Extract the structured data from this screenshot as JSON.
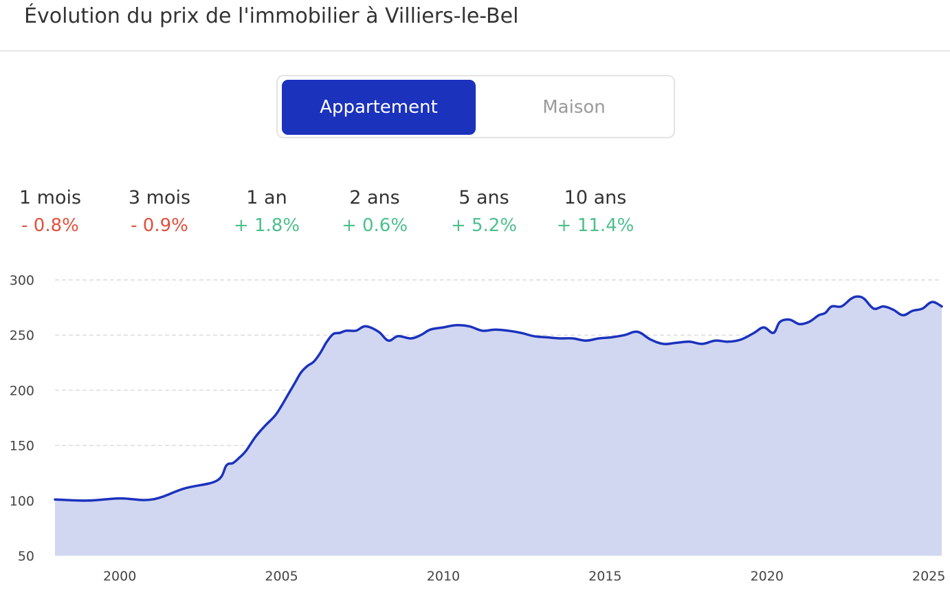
{
  "header": {
    "title": "Évolution du prix de l'immobilier à Villiers-le-Bel"
  },
  "toggle": {
    "options": [
      "Appartement",
      "Maison"
    ],
    "selected": "Appartement"
  },
  "stats": [
    {
      "period": "1 mois",
      "change": "- 0.8%",
      "trend": "down"
    },
    {
      "period": "3 mois",
      "change": "- 0.9%",
      "trend": "down"
    },
    {
      "period": "1 an",
      "change": "+ 1.8%",
      "trend": "up"
    },
    {
      "period": "2 ans",
      "change": "+ 0.6%",
      "trend": "up"
    },
    {
      "period": "5 ans",
      "change": "+ 5.2%",
      "trend": "up"
    },
    {
      "period": "10 ans",
      "change": "+ 11.4%",
      "trend": "up"
    }
  ],
  "colors": {
    "accent": "#1b32bd",
    "area_fill": "#d1d7f1",
    "negative": "#e0503c",
    "positive": "#4cbf8d",
    "gridline": "#dcdcdc"
  },
  "chart_data": {
    "type": "area",
    "title": "",
    "xlabel": "",
    "ylabel": "",
    "xlim": [
      1998.0,
      2025.4
    ],
    "ylim": [
      50,
      300
    ],
    "y_ticks": [
      300,
      250,
      200,
      150,
      100,
      50
    ],
    "x_ticks": [
      2000,
      2005,
      2010,
      2015,
      2020,
      2025
    ],
    "grid": true,
    "x": [
      1998.0,
      1999.0,
      2000.0,
      2001.0,
      2002.0,
      2003.0,
      2003.3,
      2003.5,
      2003.7,
      2003.9,
      2004.2,
      2004.5,
      2004.8,
      2005.0,
      2005.2,
      2005.4,
      2005.6,
      2005.8,
      2006.0,
      2006.2,
      2006.4,
      2006.6,
      2006.8,
      2007.0,
      2007.3,
      2007.6,
      2008.0,
      2008.3,
      2008.6,
      2009.0,
      2009.3,
      2009.6,
      2010.0,
      2010.4,
      2010.8,
      2011.2,
      2011.6,
      2012.0,
      2012.4,
      2012.8,
      2013.2,
      2013.6,
      2014.0,
      2014.4,
      2014.8,
      2015.2,
      2015.6,
      2016.0,
      2016.4,
      2016.8,
      2017.2,
      2017.6,
      2018.0,
      2018.4,
      2018.8,
      2019.2,
      2019.6,
      2019.9,
      2020.2,
      2020.4,
      2020.7,
      2021.0,
      2021.3,
      2021.6,
      2021.8,
      2022.0,
      2022.3,
      2022.6,
      2022.8,
      2023.0,
      2023.3,
      2023.6,
      2023.9,
      2024.2,
      2024.5,
      2024.8,
      2025.1,
      2025.4
    ],
    "series": [
      {
        "values": [
          101,
          100,
          102,
          101,
          111,
          118,
          132,
          134,
          139,
          145,
          158,
          168,
          177,
          186,
          196,
          206,
          216,
          222,
          226,
          234,
          244,
          251,
          252,
          254,
          254,
          258,
          253,
          245,
          249,
          247,
          250,
          255,
          257,
          259,
          258,
          254,
          255,
          254,
          252,
          249,
          248,
          247,
          247,
          245,
          247,
          248,
          250,
          253,
          246,
          242,
          243,
          244,
          242,
          245,
          244,
          246,
          252,
          257,
          252,
          262,
          264,
          260,
          262,
          268,
          270,
          276,
          276,
          283,
          285,
          283,
          274,
          276,
          273,
          268,
          272,
          274,
          280,
          276
        ]
      }
    ]
  }
}
